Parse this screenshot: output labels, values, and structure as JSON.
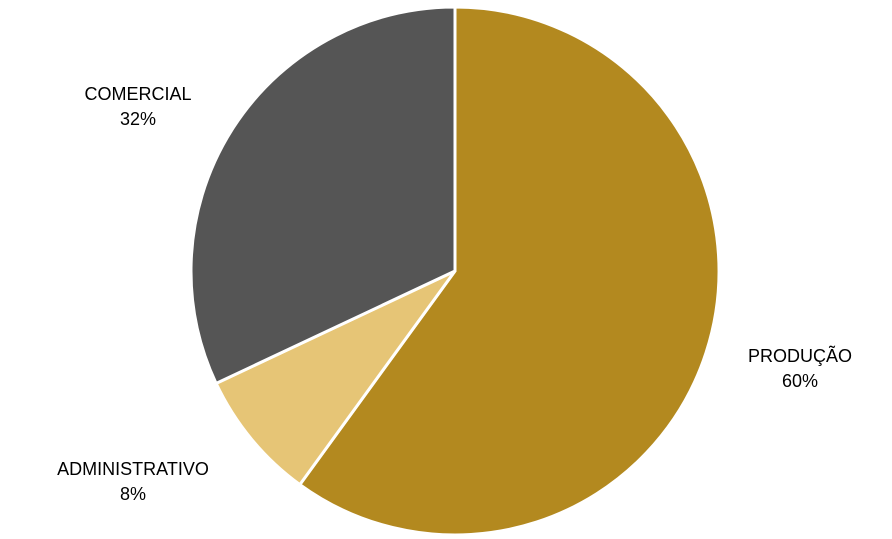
{
  "chart_data": {
    "type": "pie",
    "title": "",
    "start_angle_deg": 0,
    "direction": "clockwise",
    "slices": [
      {
        "label": "PRODUÇÃO",
        "value": 60,
        "value_label": "60%",
        "color": "#B3891F"
      },
      {
        "label": "ADMINISTRATIVO",
        "value": 8,
        "value_label": "8%",
        "color": "#E6C576"
      },
      {
        "label": "COMERCIAL",
        "value": 32,
        "value_label": "32%",
        "color": "#555555"
      }
    ],
    "legend": "none",
    "slice_border_color": "#FFFFFF"
  }
}
